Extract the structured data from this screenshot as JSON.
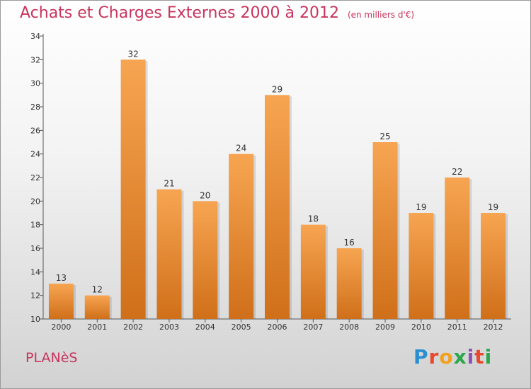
{
  "title": "Achats et Charges Externes 2000 à 2012",
  "unit": "(en milliers d'€)",
  "town": "PLANèS",
  "logo": [
    "P",
    "r",
    "o",
    "x",
    "i",
    "t",
    "i"
  ],
  "colors": {
    "title": "#c8345c",
    "bar_top": "#f7a552",
    "bar_bottom": "#d06f19"
  },
  "chart_data": {
    "type": "bar",
    "title": "Achats et Charges Externes 2000 à 2012",
    "subtitle": "(en milliers d'€)",
    "categories": [
      "2000",
      "2001",
      "2002",
      "2003",
      "2004",
      "2005",
      "2006",
      "2007",
      "2008",
      "2009",
      "2010",
      "2011",
      "2012"
    ],
    "values": [
      13,
      12,
      32,
      21,
      20,
      24,
      29,
      18,
      16,
      25,
      19,
      22,
      19
    ],
    "ylim": [
      10,
      34
    ],
    "yticks": [
      10,
      12,
      14,
      16,
      18,
      20,
      22,
      24,
      26,
      28,
      30,
      32,
      34
    ],
    "grid": false,
    "data_labels": true
  }
}
